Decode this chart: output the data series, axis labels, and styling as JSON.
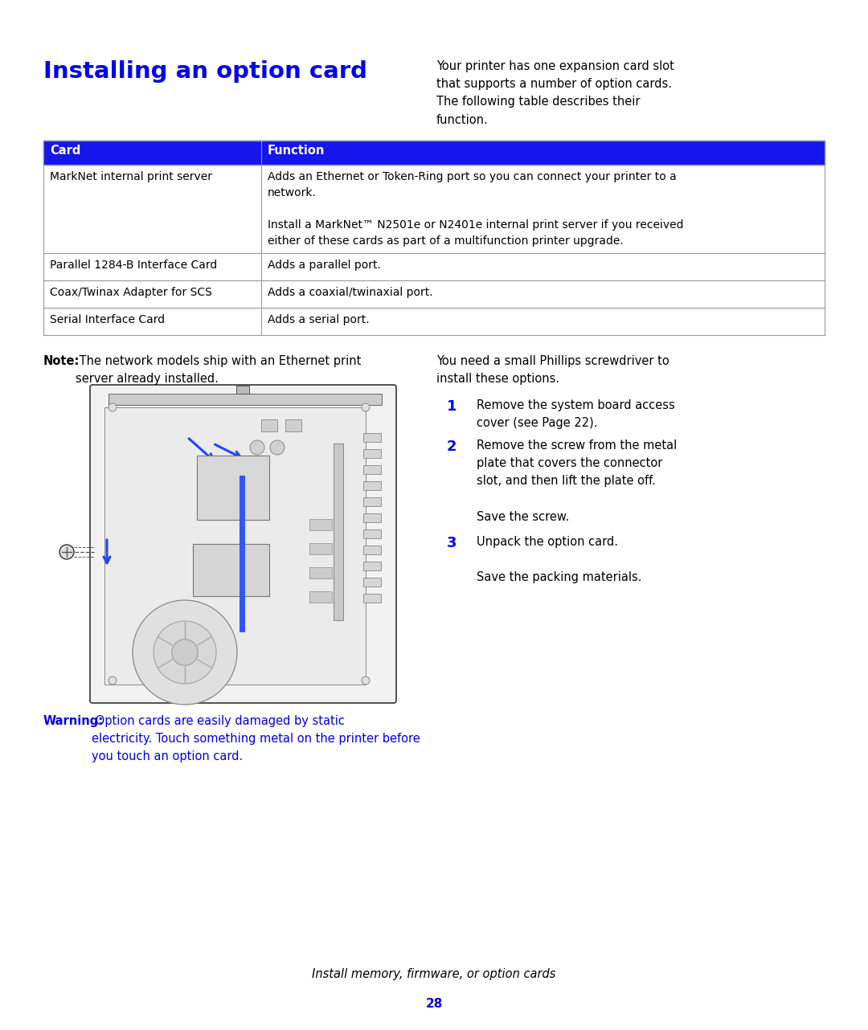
{
  "title": "Installing an option card",
  "title_color": "#0000EE",
  "title_fontsize": 21,
  "intro_text": "Your printer has one expansion card slot\nthat supports a number of option cards.\nThe following table describes their\nfunction.",
  "table_header": [
    "Card",
    "Function"
  ],
  "table_header_bg": "#1515EE",
  "table_header_color": "#FFFFFF",
  "table_rows": [
    [
      "MarkNet internal print server",
      "Adds an Ethernet or Token-Ring port so you can connect your printer to a\nnetwork.\n\nInstall a MarkNet™ N2501e or N2401e internal print server if you received\neither of these cards as part of a multifunction printer upgrade."
    ],
    [
      "Parallel 1284-B Interface Card",
      "Adds a parallel port."
    ],
    [
      "Coax/Twinax Adapter for SCS",
      "Adds a coaxial/twinaxial port."
    ],
    [
      "Serial Interface Card",
      "Adds a serial port."
    ]
  ],
  "note_bold": "Note:",
  "note_text": " The network models ship with an Ethernet print\nserver already installed.",
  "screwdriver_text": "You need a small Phillips screwdriver to\ninstall these options.",
  "step1_num": "1",
  "step1_text": "Remove the system board access\ncover (see Page 22).",
  "step2_num": "2",
  "step2_text": "Remove the screw from the metal\nplate that covers the connector\nslot, and then lift the plate off.\n\nSave the screw.",
  "step3_num": "3",
  "step3_text": "Unpack the option card.\n\nSave the packing materials.",
  "warning_bold": "Warning:",
  "warning_text": " Option cards are easily damaged by static\nelectricity. Touch something metal on the printer before\nyou touch an option card.",
  "footer_italic": "Install memory, firmware, or option cards",
  "page_num": "28",
  "page_num_color": "#0000EE",
  "blue_color": "#0000EE",
  "step_num_color": "#0000EE",
  "bg_color": "#FFFFFF",
  "text_color": "#000000",
  "table_line_color": "#999999"
}
